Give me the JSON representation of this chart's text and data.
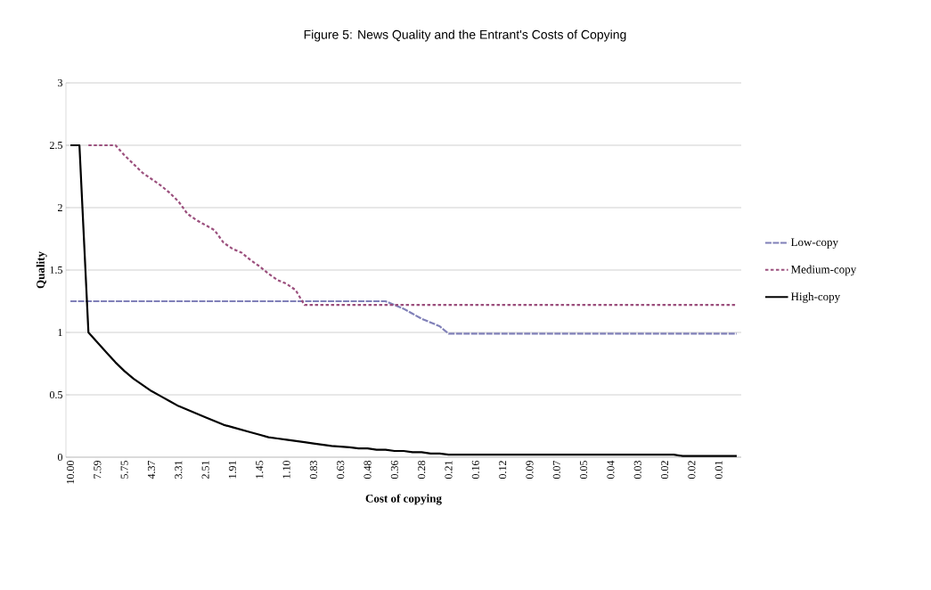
{
  "chart_data": {
    "type": "line",
    "title": "Figure 5: News Quality and the Entrant's Costs of Copying",
    "xlabel": "Cost of copying",
    "ylabel": "Quality",
    "categories": [
      "10.00",
      null,
      null,
      "7.59",
      null,
      null,
      "5.75",
      null,
      null,
      "4.37",
      null,
      null,
      "3.31",
      null,
      null,
      "2.51",
      null,
      null,
      "1.91",
      null,
      null,
      "1.45",
      null,
      null,
      "1.10",
      null,
      null,
      "0.83",
      null,
      null,
      "0.63",
      null,
      null,
      "0.48",
      null,
      null,
      "0.36",
      null,
      null,
      "0.28",
      null,
      null,
      "0.21",
      null,
      null,
      "0.16",
      null,
      null,
      "0.12",
      null,
      null,
      "0.09",
      null,
      null,
      "0.07",
      null,
      null,
      "0.05",
      null,
      null,
      "0.04",
      null,
      null,
      "0.03",
      null,
      null,
      "0.02",
      null,
      null,
      "0.02",
      null,
      null,
      "0.01",
      null,
      null
    ],
    "series": [
      {
        "name": "Low-copy",
        "color": "#8080b8",
        "line_style": "dashed",
        "values": [
          1.25,
          1.25,
          1.25,
          1.25,
          1.25,
          1.25,
          1.25,
          1.25,
          1.25,
          1.25,
          1.25,
          1.25,
          1.25,
          1.25,
          1.25,
          1.25,
          1.25,
          1.25,
          1.25,
          1.25,
          1.25,
          1.25,
          1.25,
          1.25,
          1.25,
          1.25,
          1.25,
          1.25,
          1.25,
          1.25,
          1.25,
          1.25,
          1.25,
          1.25,
          1.25,
          1.25,
          1.22,
          1.19,
          1.15,
          1.11,
          1.08,
          1.05,
          0.99,
          0.99,
          0.99,
          0.99,
          0.99,
          0.99,
          0.99,
          0.99,
          0.99,
          0.99,
          0.99,
          0.99,
          0.99,
          0.99,
          0.99,
          0.99,
          0.99,
          0.99,
          0.99,
          0.99,
          0.99,
          0.99,
          0.99,
          0.99,
          0.99,
          0.99,
          0.99,
          0.99,
          0.99,
          0.99,
          0.99,
          0.99,
          0.99
        ]
      },
      {
        "name": "Medium-copy",
        "color": "#9b4f7d",
        "line_style": "dotted",
        "values": [
          null,
          null,
          2.5,
          2.5,
          2.5,
          2.5,
          2.42,
          2.35,
          2.28,
          2.23,
          2.18,
          2.12,
          2.05,
          1.95,
          1.9,
          1.86,
          1.82,
          1.72,
          1.67,
          1.64,
          1.58,
          1.53,
          1.47,
          1.42,
          1.39,
          1.34,
          1.22,
          1.22,
          1.22,
          1.22,
          1.22,
          1.22,
          1.22,
          1.22,
          1.22,
          1.22,
          1.22,
          1.22,
          1.22,
          1.22,
          1.22,
          1.22,
          1.22,
          1.22,
          1.22,
          1.22,
          1.22,
          1.22,
          1.22,
          1.22,
          1.22,
          1.22,
          1.22,
          1.22,
          1.22,
          1.22,
          1.22,
          1.22,
          1.22,
          1.22,
          1.22,
          1.22,
          1.22,
          1.22,
          1.22,
          1.22,
          1.22,
          1.22,
          1.22,
          1.22,
          1.22,
          1.22,
          1.22,
          1.22,
          1.22
        ]
      },
      {
        "name": "High-copy",
        "color": "#000000",
        "line_style": "solid",
        "values": [
          2.5,
          2.5,
          1.0,
          0.92,
          0.84,
          0.76,
          0.69,
          0.63,
          0.58,
          0.53,
          0.49,
          0.45,
          0.41,
          0.38,
          0.35,
          0.32,
          0.29,
          0.26,
          0.24,
          0.22,
          0.2,
          0.18,
          0.16,
          0.15,
          0.14,
          0.13,
          0.12,
          0.11,
          0.1,
          0.09,
          0.085,
          0.08,
          0.07,
          0.07,
          0.06,
          0.06,
          0.05,
          0.05,
          0.04,
          0.04,
          0.03,
          0.03,
          0.02,
          0.02,
          0.02,
          0.02,
          0.02,
          0.02,
          0.02,
          0.02,
          0.02,
          0.02,
          0.02,
          0.02,
          0.02,
          0.02,
          0.02,
          0.02,
          0.02,
          0.02,
          0.02,
          0.02,
          0.02,
          0.02,
          0.02,
          0.02,
          0.02,
          0.02,
          0.01,
          0.01,
          0.01,
          0.01,
          0.01,
          0.01,
          0.01
        ]
      }
    ],
    "ylim": [
      0,
      3
    ],
    "yticks": [
      0,
      0.5,
      1,
      1.5,
      2,
      2.5,
      3
    ],
    "grid": "y",
    "legend": "right"
  }
}
